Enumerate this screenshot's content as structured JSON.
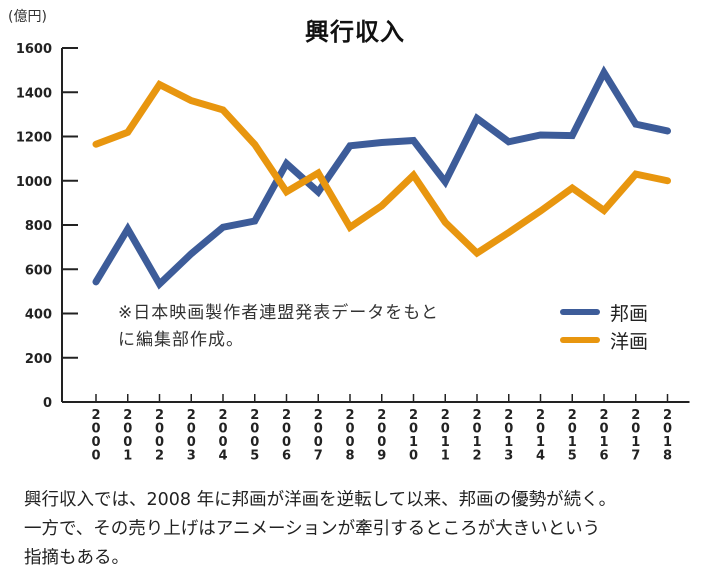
{
  "chart_data": {
    "type": "line",
    "title": "興行収入",
    "ylabel": "(億円)",
    "xlabel": "",
    "ylim": [
      0,
      1600
    ],
    "yticks": [
      0,
      200,
      400,
      600,
      800,
      1000,
      1200,
      1400,
      1600
    ],
    "x": [
      "2000",
      "2001",
      "2002",
      "2003",
      "2004",
      "2005",
      "2006",
      "2007",
      "2008",
      "2009",
      "2010",
      "2011",
      "2012",
      "2013",
      "2014",
      "2015",
      "2016",
      "2017",
      "2018"
    ],
    "series": [
      {
        "name": "邦画",
        "color": "#3d5c99",
        "values": [
          543,
          782,
          533,
          670,
          790,
          818,
          1078,
          949,
          1158,
          1173,
          1182,
          995,
          1282,
          1176,
          1207,
          1204,
          1489,
          1256,
          1225
        ]
      },
      {
        "name": "洋画",
        "color": "#e8960f",
        "values": [
          1165,
          1219,
          1435,
          1362,
          1320,
          1164,
          950,
          1035,
          790,
          887,
          1025,
          812,
          673,
          766,
          863,
          967,
          866,
          1030,
          1000
        ]
      }
    ],
    "grid": false,
    "legend_position": "right",
    "annotation": [
      "※日本映画製作者連盟発表データをもと",
      "に編集部作成。"
    ]
  },
  "caption": [
    "興行収入では、2008 年に邦画が洋画を逆転して以来、邦画の優勢が続く。",
    "一方で、その売り上げはアニメーションが牽引するところが大きいという",
    "指摘もある。"
  ]
}
